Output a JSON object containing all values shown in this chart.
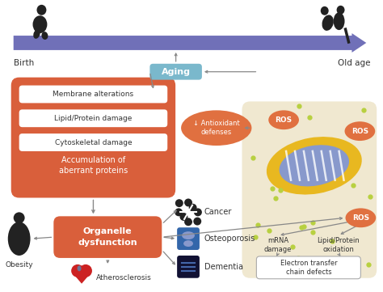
{
  "bg_color": "#ffffff",
  "arrow_color": "#7070b8",
  "ros_color": "#e07040",
  "red_box_color": "#d95f3b",
  "aging_box_color": "#7ab8cc",
  "mito_bg_color": "#f0e8d0",
  "birth_label": "Birth",
  "old_age_label": "Old age",
  "aging_label": "Aging",
  "damage_items": [
    "Membrane alterations",
    "Lipid/Protein damage",
    "Cytoskeletal damage"
  ],
  "accumulation_label": "Accumulation of\naberrant proteins",
  "organelle_label": "Organelle\ndysfunction",
  "cancer_label": "Cancer",
  "osteoporosis_label": "Osteoporosis",
  "dementia_label": "Dementia",
  "obesity_label": "Obesity",
  "athero_label": "Atherosclerosis",
  "antioxidant_label": "↓ Antioxidant\ndefenses",
  "mrna_label": "mRNA\ndamage",
  "lipid_ox_label": "Lipid/Protein\noxidation",
  "electron_label": "Electron transfer\nchain defects",
  "green_dot_color": "#b8d040",
  "gray_arrow": "#888888"
}
